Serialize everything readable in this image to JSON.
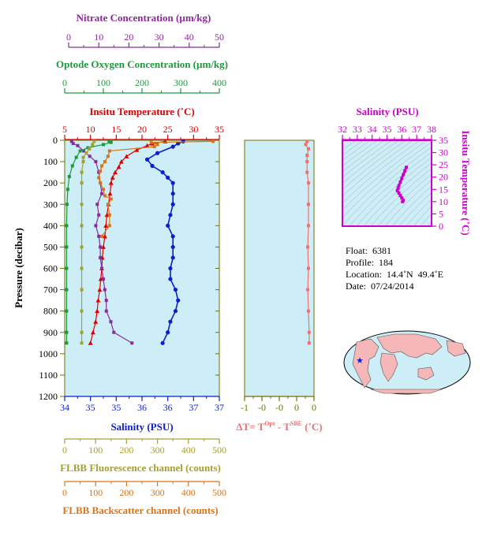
{
  "colors": {
    "nitrate": "#8b2a9b",
    "oxygen": "#1d9a3c",
    "temperature": "#e00000",
    "salinity": "#0a1fd0",
    "fluorescence": "#a6a030",
    "backscatter": "#d9741a",
    "delta_t": "#f07070",
    "ts_magenta": "#cc00cc",
    "panel_fill": "#cdeef6"
  },
  "axes": {
    "nitrate": {
      "title": "Nitrate Concentration (µm/kg)",
      "range": [
        0,
        50
      ],
      "ticks": [
        "0",
        "10",
        "20",
        "30",
        "40",
        "50"
      ]
    },
    "oxygen": {
      "title": "Optode Oxygen Concentration (µm/kg)",
      "range": [
        0,
        400
      ],
      "ticks": [
        "0",
        "100",
        "200",
        "300",
        "400"
      ]
    },
    "temperature": {
      "title": "Insitu Temperature (˚C)",
      "range": [
        5,
        35
      ],
      "ticks": [
        "5",
        "10",
        "15",
        "20",
        "25",
        "30",
        "35"
      ]
    },
    "salinity": {
      "title": "Salinity (PSU)",
      "range": [
        34,
        37
      ],
      "ticks": [
        "34",
        "35",
        "35",
        "36",
        "36",
        "37",
        "37"
      ]
    },
    "fluorescence": {
      "title": "FLBB Fluorescence channel (counts)",
      "range": [
        0,
        500
      ],
      "ticks": [
        "0",
        "100",
        "200",
        "300",
        "400",
        "500"
      ]
    },
    "backscatter": {
      "title": "FLBB Backscatter channel (counts)",
      "range": [
        0,
        500
      ],
      "ticks": [
        "0",
        "100",
        "200",
        "300",
        "400",
        "500"
      ]
    },
    "pressure": {
      "title": "Pressure (decibar)",
      "range": [
        0,
        1200
      ],
      "ticks": [
        "0",
        "100",
        "200",
        "300",
        "400",
        "500",
        "600",
        "700",
        "800",
        "900",
        "1000",
        "1100",
        "1200"
      ]
    },
    "delta_t": {
      "title": "ΔT= T",
      "sup1": "Opt",
      "mid": " - T",
      "sup2": "SBE",
      "unit": " (˚C)",
      "range": [
        -1,
        0
      ],
      "ticks": [
        "-1",
        "-0",
        "-0",
        "0",
        "0"
      ]
    },
    "ts_salinity": {
      "title": "Salinity (PSU)",
      "range": [
        32,
        38
      ],
      "ticks": [
        "32",
        "33",
        "34",
        "35",
        "36",
        "37",
        "38"
      ]
    },
    "ts_temperature": {
      "title": "Insitu Temperature (˚C)",
      "range": [
        0,
        35
      ],
      "ticks": [
        "0",
        "5",
        "10",
        "15",
        "20",
        "25",
        "30",
        "35"
      ]
    }
  },
  "info": {
    "float": "Float:  6381",
    "profile": "Profile:  184",
    "location": "Location:  14.4˚N  49.4˚E",
    "date": "Date:  07/24/2014"
  },
  "chart_data": [
    {
      "type": "line",
      "name": "profile",
      "ylim": [
        0,
        1200
      ],
      "y_reversed": true,
      "series": [
        {
          "name": "Insitu Temperature",
          "axis": "temperature",
          "points": [
            [
              24.5,
              5
            ],
            [
              22,
              15
            ],
            [
              21,
              25
            ],
            [
              19,
              45
            ],
            [
              17,
              75
            ],
            [
              16,
              100
            ],
            [
              15.5,
              125
            ],
            [
              14.8,
              150
            ],
            [
              14.3,
              175
            ],
            [
              14,
              200
            ],
            [
              13.8,
              250
            ],
            [
              13.5,
              300
            ],
            [
              13.2,
              350
            ],
            [
              13,
              400
            ],
            [
              12.8,
              450
            ],
            [
              12.5,
              500
            ],
            [
              12.3,
              550
            ],
            [
              12.2,
              600
            ],
            [
              12,
              650
            ],
            [
              11.8,
              700
            ],
            [
              11.5,
              750
            ],
            [
              11.3,
              800
            ],
            [
              11,
              850
            ],
            [
              10.5,
              900
            ],
            [
              10,
              950
            ]
          ]
        },
        {
          "name": "Salinity",
          "axis": "salinity",
          "points": [
            [
              36.3,
              5
            ],
            [
              36.2,
              15
            ],
            [
              36.1,
              30
            ],
            [
              35.8,
              60
            ],
            [
              35.6,
              90
            ],
            [
              35.7,
              120
            ],
            [
              35.9,
              150
            ],
            [
              36,
              175
            ],
            [
              36.1,
              200
            ],
            [
              36.1,
              250
            ],
            [
              36.1,
              300
            ],
            [
              36.05,
              350
            ],
            [
              36,
              400
            ],
            [
              36.1,
              450
            ],
            [
              36.1,
              500
            ],
            [
              36.1,
              550
            ],
            [
              36.05,
              600
            ],
            [
              36.05,
              650
            ],
            [
              36.15,
              700
            ],
            [
              36.2,
              750
            ],
            [
              36.15,
              800
            ],
            [
              36.05,
              850
            ],
            [
              36,
              900
            ],
            [
              35.9,
              950
            ]
          ]
        },
        {
          "name": "Nitrate Concentration",
          "axis": "nitrate",
          "points": [
            [
              1,
              5
            ],
            [
              1.5,
              15
            ],
            [
              3,
              25
            ],
            [
              5,
              50
            ],
            [
              7,
              75
            ],
            [
              9,
              100
            ],
            [
              10,
              150
            ],
            [
              10.5,
              200
            ],
            [
              11,
              250
            ],
            [
              9.5,
              300
            ],
            [
              10,
              350
            ],
            [
              9,
              400
            ],
            [
              10,
              450
            ],
            [
              10.5,
              500
            ],
            [
              10.5,
              550
            ],
            [
              11,
              600
            ],
            [
              11.5,
              650
            ],
            [
              12,
              700
            ],
            [
              12.5,
              750
            ],
            [
              12.5,
              800
            ],
            [
              14,
              850
            ],
            [
              15,
              900
            ],
            [
              21,
              950
            ]
          ]
        },
        {
          "name": "Optode Oxygen Concentration",
          "axis": "oxygen",
          "points": [
            [
              115,
              5
            ],
            [
              120,
              10
            ],
            [
              100,
              20
            ],
            [
              60,
              35
            ],
            [
              40,
              50
            ],
            [
              30,
              80
            ],
            [
              20,
              120
            ],
            [
              12,
              170
            ],
            [
              8,
              230
            ],
            [
              6,
              300
            ],
            [
              5,
              400
            ],
            [
              5,
              500
            ],
            [
              5,
              600
            ],
            [
              5,
              700
            ],
            [
              5,
              800
            ],
            [
              5,
              900
            ],
            [
              5,
              950
            ]
          ]
        },
        {
          "name": "FLBB Fluorescence channel",
          "axis": "fluorescence",
          "points": [
            [
              95,
              5
            ],
            [
              90,
              20
            ],
            [
              80,
              40
            ],
            [
              70,
              60
            ],
            [
              60,
              80
            ],
            [
              60,
              100
            ],
            [
              55,
              150
            ],
            [
              55,
              200
            ],
            [
              55,
              300
            ],
            [
              55,
              400
            ],
            [
              55,
              500
            ],
            [
              55,
              600
            ],
            [
              55,
              700
            ],
            [
              55,
              800
            ],
            [
              55,
              900
            ],
            [
              55,
              950
            ]
          ]
        },
        {
          "name": "FLBB Backscatter channel",
          "axis": "backscatter",
          "points": [
            [
              480,
              5
            ],
            [
              280,
              10
            ],
            [
              300,
              20
            ],
            [
              290,
              30
            ],
            [
              145,
              50
            ],
            [
              140,
              75
            ],
            [
              130,
              100
            ],
            [
              120,
              120
            ],
            [
              115,
              145
            ],
            [
              110,
              175
            ],
            [
              115,
              200
            ],
            [
              125,
              230
            ],
            [
              130,
              260
            ],
            [
              150,
              275
            ],
            [
              140,
              300
            ],
            [
              145,
              350
            ],
            [
              145,
              400
            ],
            [
              120,
              450
            ]
          ]
        },
        {
          "name": "ΔT",
          "axis": "delta_t",
          "points": [
            [
              -0.1,
              5
            ],
            [
              -0.12,
              20
            ],
            [
              -0.08,
              40
            ],
            [
              -0.1,
              70
            ],
            [
              -0.1,
              100
            ],
            [
              -0.1,
              150
            ],
            [
              -0.08,
              200
            ],
            [
              -0.08,
              300
            ],
            [
              -0.08,
              400
            ],
            [
              -0.09,
              500
            ],
            [
              -0.08,
              600
            ],
            [
              -0.09,
              700
            ],
            [
              -0.08,
              800
            ],
            [
              -0.07,
              900
            ],
            [
              -0.07,
              950
            ]
          ]
        }
      ]
    },
    {
      "type": "scatter",
      "name": "T-S diagram",
      "xlabel": "Salinity (PSU)",
      "ylabel": "Insitu Temperature (˚C)",
      "xlim": [
        32,
        38
      ],
      "ylim": [
        0,
        35
      ],
      "points": [
        [
          36.3,
          24
        ],
        [
          36.2,
          22.5
        ],
        [
          36.1,
          21
        ],
        [
          36,
          19.5
        ],
        [
          35.9,
          18
        ],
        [
          35.8,
          16.5
        ],
        [
          35.75,
          15.5
        ],
        [
          35.7,
          14.5
        ],
        [
          35.8,
          13.5
        ],
        [
          35.9,
          12.5
        ],
        [
          36,
          11.5
        ],
        [
          36.1,
          10.5
        ],
        [
          36.05,
          10
        ]
      ]
    }
  ]
}
